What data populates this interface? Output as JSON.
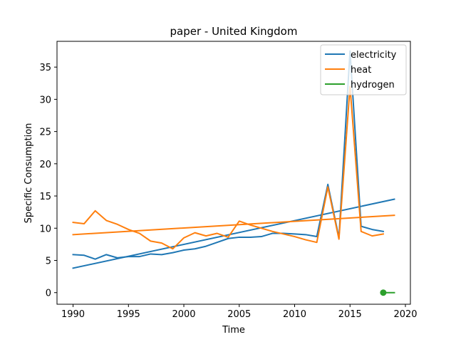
{
  "chart_data": {
    "type": "line",
    "title": "paper - United Kingdom",
    "xlabel": "Time",
    "ylabel": "Specific Consumption",
    "xlim": [
      1988.55,
      2020.45
    ],
    "ylim": [
      -1.8,
      39.0
    ],
    "xticks": [
      1990,
      1995,
      2000,
      2005,
      2010,
      2015,
      2020
    ],
    "yticks": [
      0,
      5,
      10,
      15,
      20,
      25,
      30,
      35
    ],
    "legend": "top-right",
    "grid": false,
    "series": [
      {
        "name": "electricity",
        "color": "#1f77b4",
        "style": "line",
        "x": [
          1990,
          1991,
          1992,
          1993,
          1994,
          1995,
          1996,
          1997,
          1998,
          1999,
          2000,
          2001,
          2002,
          2003,
          2004,
          2005,
          2006,
          2007,
          2008,
          2009,
          2010,
          2011,
          2012,
          2013,
          2014,
          2015,
          2016,
          2017,
          2018
        ],
        "y": [
          5.9,
          5.8,
          5.2,
          5.9,
          5.4,
          5.6,
          5.6,
          6.0,
          5.9,
          6.2,
          6.6,
          6.8,
          7.2,
          7.8,
          8.4,
          8.6,
          8.6,
          8.7,
          9.2,
          9.2,
          9.1,
          9.0,
          8.7,
          16.8,
          8.5,
          37.5,
          10.3,
          9.8,
          9.5
        ]
      },
      {
        "name": "electricity-trend",
        "color": "#1f77b4",
        "style": "line",
        "x": [
          1990,
          2019
        ],
        "y": [
          3.8,
          14.5
        ]
      },
      {
        "name": "heat",
        "color": "#ff7f0e",
        "style": "line",
        "x": [
          1990,
          1991,
          1992,
          1993,
          1994,
          1995,
          1996,
          1997,
          1998,
          1999,
          2000,
          2001,
          2002,
          2003,
          2004,
          2005,
          2006,
          2007,
          2008,
          2009,
          2010,
          2011,
          2012,
          2013,
          2014,
          2015,
          2016,
          2017,
          2018
        ],
        "y": [
          10.9,
          10.7,
          12.7,
          11.2,
          10.6,
          9.8,
          9.2,
          8.0,
          7.7,
          6.8,
          8.5,
          9.3,
          8.8,
          9.2,
          8.6,
          11.1,
          10.5,
          10.0,
          9.5,
          9.1,
          8.7,
          8.2,
          7.8,
          16.4,
          8.3,
          32.0,
          9.5,
          8.8,
          9.1
        ]
      },
      {
        "name": "heat-trend",
        "color": "#ff7f0e",
        "style": "line",
        "x": [
          1990,
          2019
        ],
        "y": [
          9.0,
          12.0
        ]
      },
      {
        "name": "hydrogen",
        "color": "#2ca02c",
        "style": "line",
        "x": [
          2018,
          2019
        ],
        "y": [
          0.0,
          0.0
        ]
      },
      {
        "name": "hydrogen-point",
        "color": "#2ca02c",
        "style": "marker",
        "x": [
          2018
        ],
        "y": [
          0.0
        ]
      }
    ],
    "legend_entries": [
      {
        "label": "electricity",
        "color": "#1f77b4"
      },
      {
        "label": "heat",
        "color": "#ff7f0e"
      },
      {
        "label": "hydrogen",
        "color": "#2ca02c"
      }
    ]
  }
}
